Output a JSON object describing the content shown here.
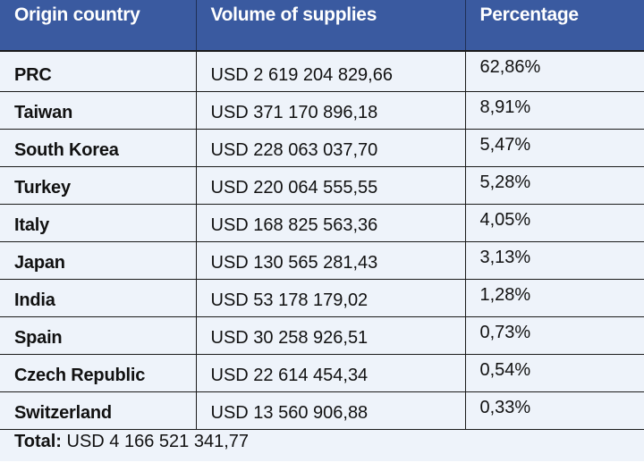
{
  "header": {
    "origin_country": "Origin country",
    "volume": "Volume of supplies",
    "percentage": "Percentage"
  },
  "rows": [
    {
      "country": "PRC",
      "volume": "USD 2 619 204 829,66",
      "percentage": "62,86%"
    },
    {
      "country": "Taiwan",
      "volume": "USD 371 170 896,18",
      "percentage": "8,91%"
    },
    {
      "country": "South Korea",
      "volume": "USD 228 063 037,70",
      "percentage": "5,47%"
    },
    {
      "country": "Turkey",
      "volume": "USD 220 064 555,55",
      "percentage": "5,28%"
    },
    {
      "country": "Italy",
      "volume": "USD 168 825 563,36",
      "percentage": "4,05%"
    },
    {
      "country": "Japan",
      "volume": "USD 130 565 281,43",
      "percentage": "3,13%"
    },
    {
      "country": "India",
      "volume": "USD 53 178 179,02",
      "percentage": "1,28%"
    },
    {
      "country": "Spain",
      "volume": "USD 30 258 926,51",
      "percentage": "0,73%"
    },
    {
      "country": "Czech Republic",
      "volume": "USD 22 614 454,34",
      "percentage": "0,54%"
    },
    {
      "country": "Switzerland",
      "volume": "USD 13 560 906,88",
      "percentage": "0,33%"
    }
  ],
  "total": {
    "label": "Total:",
    "value": "USD 4 166 521 341,77"
  },
  "colors": {
    "header_bg": "#3a5aa0",
    "header_text": "#ffffff",
    "row_bg": "#eef3fa"
  }
}
